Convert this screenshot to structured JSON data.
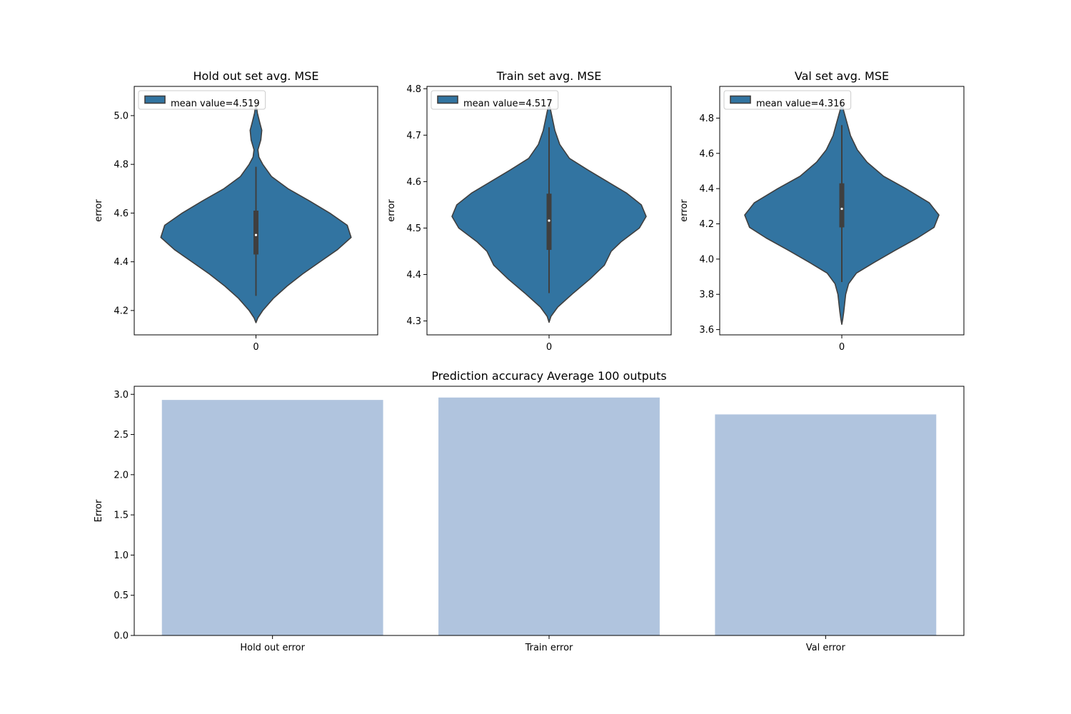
{
  "chart_data": [
    {
      "type": "violin",
      "title": "Hold out set avg. MSE",
      "xlabel": "",
      "ylabel": "error",
      "categories": [
        "0"
      ],
      "ylim": [
        4.1,
        5.12
      ],
      "yticks": [
        4.2,
        4.4,
        4.6,
        4.8,
        5.0
      ],
      "ytick_labels": [
        "4.2",
        "4.4",
        "4.6",
        "4.8",
        "5.0"
      ],
      "legend": {
        "label": "mean value=4.519",
        "placement": "top-left"
      },
      "color": "#3274a1",
      "edge_color": "#3f3f3f",
      "stats": {
        "whisker_low": 4.26,
        "q1": 4.43,
        "median": 4.51,
        "q3": 4.61,
        "whisker_high": 4.79
      },
      "density": [
        [
          4.15,
          0.0
        ],
        [
          4.17,
          0.02
        ],
        [
          4.2,
          0.07
        ],
        [
          4.25,
          0.18
        ],
        [
          4.3,
          0.32
        ],
        [
          4.35,
          0.48
        ],
        [
          4.4,
          0.66
        ],
        [
          4.45,
          0.84
        ],
        [
          4.5,
          0.98
        ],
        [
          4.55,
          0.94
        ],
        [
          4.6,
          0.76
        ],
        [
          4.65,
          0.55
        ],
        [
          4.7,
          0.33
        ],
        [
          4.75,
          0.16
        ],
        [
          4.8,
          0.07
        ],
        [
          4.83,
          0.03
        ],
        [
          4.86,
          0.02
        ],
        [
          4.9,
          0.05
        ],
        [
          4.94,
          0.06
        ],
        [
          4.97,
          0.04
        ],
        [
          5.01,
          0.015
        ],
        [
          5.05,
          0.0
        ]
      ]
    },
    {
      "type": "violin",
      "title": "Train set avg. MSE",
      "xlabel": "",
      "ylabel": "error",
      "categories": [
        "0"
      ],
      "ylim": [
        4.27,
        4.805
      ],
      "yticks": [
        4.3,
        4.4,
        4.5,
        4.6,
        4.7,
        4.8
      ],
      "ytick_labels": [
        "4.3",
        "4.4",
        "4.5",
        "4.6",
        "4.7",
        "4.8"
      ],
      "legend": {
        "label": "mean value=4.517",
        "placement": "top-left"
      },
      "color": "#3274a1",
      "edge_color": "#3f3f3f",
      "stats": {
        "whisker_low": 4.36,
        "q1": 4.453,
        "median": 4.516,
        "q3": 4.574,
        "whisker_high": 4.717
      },
      "density": [
        [
          4.297,
          0.0
        ],
        [
          4.31,
          0.02
        ],
        [
          4.33,
          0.09
        ],
        [
          4.36,
          0.25
        ],
        [
          4.39,
          0.42
        ],
        [
          4.42,
          0.57
        ],
        [
          4.45,
          0.64
        ],
        [
          4.47,
          0.74
        ],
        [
          4.5,
          0.93
        ],
        [
          4.525,
          1.0
        ],
        [
          4.55,
          0.95
        ],
        [
          4.575,
          0.8
        ],
        [
          4.6,
          0.6
        ],
        [
          4.625,
          0.4
        ],
        [
          4.65,
          0.21
        ],
        [
          4.68,
          0.11
        ],
        [
          4.71,
          0.06
        ],
        [
          4.74,
          0.03
        ],
        [
          4.77,
          0.0
        ]
      ]
    },
    {
      "type": "violin",
      "title": "Val set avg. MSE",
      "xlabel": "",
      "ylabel": "error",
      "categories": [
        "0"
      ],
      "ylim": [
        3.57,
        4.98
      ],
      "yticks": [
        3.6,
        3.8,
        4.0,
        4.2,
        4.4,
        4.6,
        4.8
      ],
      "ytick_labels": [
        "3.6",
        "3.8",
        "4.0",
        "4.2",
        "4.4",
        "4.6",
        "4.8"
      ],
      "legend": {
        "label": "mean value=4.316",
        "placement": "top-left"
      },
      "color": "#3274a1",
      "edge_color": "#3f3f3f",
      "stats": {
        "whisker_low": 3.87,
        "q1": 4.18,
        "median": 4.285,
        "q3": 4.43,
        "whisker_high": 4.76
      },
      "density": [
        [
          3.63,
          0.0
        ],
        [
          3.66,
          0.01
        ],
        [
          3.7,
          0.02
        ],
        [
          3.75,
          0.03
        ],
        [
          3.8,
          0.04
        ],
        [
          3.86,
          0.07
        ],
        [
          3.92,
          0.15
        ],
        [
          3.98,
          0.33
        ],
        [
          4.05,
          0.55
        ],
        [
          4.12,
          0.78
        ],
        [
          4.18,
          0.95
        ],
        [
          4.25,
          1.0
        ],
        [
          4.32,
          0.9
        ],
        [
          4.4,
          0.66
        ],
        [
          4.47,
          0.43
        ],
        [
          4.55,
          0.26
        ],
        [
          4.62,
          0.16
        ],
        [
          4.7,
          0.09
        ],
        [
          4.78,
          0.05
        ],
        [
          4.84,
          0.02
        ],
        [
          4.89,
          0.0
        ]
      ]
    },
    {
      "type": "bar",
      "title": "Prediction accuracy Average 100 outputs",
      "xlabel": "",
      "ylabel": "Error",
      "categories": [
        "Hold out error",
        "Train error",
        "Val error"
      ],
      "values": [
        2.93,
        2.96,
        2.75
      ],
      "ylim": [
        0,
        3.1
      ],
      "yticks": [
        0,
        0.5,
        1.0,
        1.5,
        2.0,
        2.5,
        3.0
      ],
      "ytick_labels": [
        "0.0",
        "0.5",
        "1.0",
        "1.5",
        "2.0",
        "2.5",
        "3.0"
      ],
      "color": "#b0c4de"
    }
  ]
}
